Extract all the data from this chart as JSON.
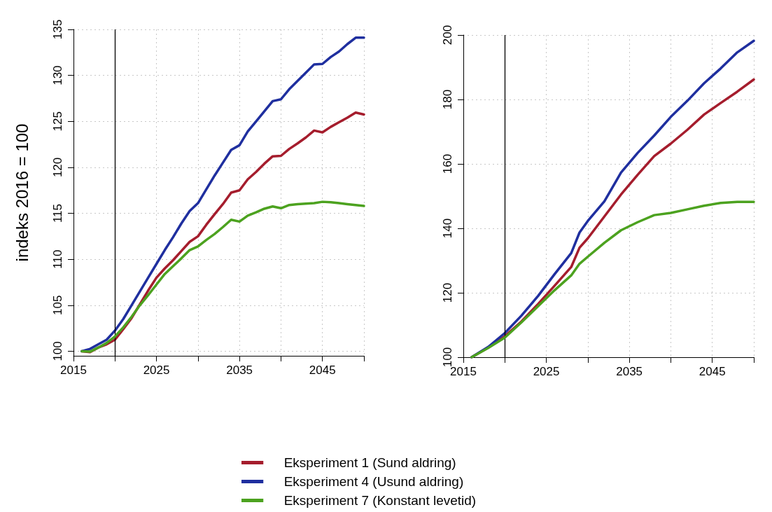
{
  "chart_data": [
    {
      "type": "line",
      "ylabel": "indeks 2016 = 100",
      "x": [
        2016,
        2017,
        2018,
        2019,
        2020,
        2021,
        2022,
        2023,
        2024,
        2025,
        2026,
        2027,
        2028,
        2029,
        2030,
        2031,
        2032,
        2033,
        2034,
        2035,
        2036,
        2037,
        2038,
        2039,
        2040,
        2041,
        2042,
        2043,
        2044,
        2045,
        2046,
        2047,
        2048,
        2049,
        2050
      ],
      "series": [
        {
          "name": "Eksperiment 1 (Sund aldring)",
          "color": "#a51d2d",
          "values": [
            100,
            99.9,
            100.4,
            100.75,
            101.25,
            102.4,
            103.6,
            105.1,
            106.6,
            108,
            109,
            109.9,
            110.9,
            111.9,
            112.5,
            113.75,
            114.9,
            116,
            117.25,
            117.5,
            118.7,
            119.5,
            120.4,
            121.2,
            121.25,
            122,
            122.6,
            123.25,
            124,
            123.8,
            124.4,
            124.9,
            125.4,
            125.95,
            125.75
          ]
        },
        {
          "name": "Eksperiment 4 (Usund aldring)",
          "color": "#1f2f9f",
          "values": [
            100,
            100.25,
            100.75,
            101.25,
            102.25,
            103.5,
            105,
            106.5,
            108,
            109.5,
            111,
            112.4,
            113.9,
            115.25,
            116.1,
            117.6,
            119.1,
            120.5,
            121.9,
            122.4,
            123.9,
            125,
            126.1,
            127.2,
            127.4,
            128.5,
            129.4,
            130.3,
            131.2,
            131.25,
            132,
            132.6,
            133.4,
            134.1,
            134.1
          ]
        },
        {
          "name": "Eksperiment 7 (Konstant levetid)",
          "color": "#4ca21f",
          "values": [
            100,
            99.95,
            100.4,
            100.9,
            101.6,
            102.6,
            103.75,
            105,
            106.1,
            107.25,
            108.4,
            109.25,
            110.1,
            111,
            111.4,
            112.1,
            112.75,
            113.5,
            114.3,
            114.1,
            114.75,
            115.1,
            115.5,
            115.75,
            115.55,
            115.9,
            116,
            116.05,
            116.1,
            116.25,
            116.2,
            116.1,
            116,
            115.9,
            115.8
          ]
        }
      ],
      "xlim": [
        2015,
        2050
      ],
      "xticks": [
        2015,
        {
          "value": 2020,
          "label": null
        },
        2025,
        {
          "value": 2030,
          "label": null
        },
        2035,
        {
          "value": 2040,
          "label": null
        },
        2045,
        {
          "value": 2050,
          "label": null
        }
      ],
      "ylim": [
        99.5,
        135
      ],
      "yticks": [
        100,
        105,
        110,
        115,
        120,
        125,
        130,
        135
      ],
      "ref_lines": [
        {
          "axis": "x",
          "value": 2020,
          "color": "#000000"
        }
      ],
      "grid": true,
      "legend": "bottom",
      "line_style": "solid",
      "marker": "none"
    },
    {
      "type": "line",
      "x": [
        2016,
        2018,
        2020,
        2022,
        2024,
        2026,
        2028,
        2029,
        2030,
        2032,
        2034,
        2036,
        2038,
        2040,
        2042,
        2044,
        2046,
        2048,
        2050
      ],
      "series": [
        {
          "color": "#a51d2d",
          "values": [
            100,
            103,
            106.5,
            111.1,
            116.5,
            122.2,
            128,
            134,
            136.9,
            143.7,
            150.5,
            156.6,
            162.4,
            166.3,
            170.6,
            175.3,
            178.9,
            182.4,
            186.2
          ]
        },
        {
          "color": "#1f2f9f",
          "values": [
            100,
            103.2,
            107.5,
            112.9,
            119,
            125.8,
            132.3,
            138.7,
            142.3,
            148.4,
            157.3,
            163.4,
            168.8,
            174.6,
            179.6,
            185,
            189.6,
            194.6,
            198.2
          ]
        },
        {
          "color": "#4ca21f",
          "values": [
            100,
            102.9,
            106.1,
            110.8,
            115.8,
            120.8,
            125.4,
            129,
            131.2,
            135.5,
            139.4,
            141.9,
            144.1,
            144.8,
            145.9,
            147,
            147.9,
            148.2,
            148.2
          ]
        }
      ],
      "xlim": [
        2015,
        2050
      ],
      "xticks": [
        2015,
        {
          "value": 2020,
          "label": null
        },
        2025,
        {
          "value": 2030,
          "label": null
        },
        2035,
        {
          "value": 2040,
          "label": null
        },
        2045,
        {
          "value": 2050,
          "label": null
        }
      ],
      "ylim": [
        100,
        200
      ],
      "yticks": [
        100,
        120,
        140,
        160,
        180,
        200
      ],
      "ref_lines": [
        {
          "axis": "x",
          "value": 2020,
          "color": "#000000"
        }
      ],
      "grid": true,
      "line_style": "solid",
      "marker": "none"
    }
  ]
}
